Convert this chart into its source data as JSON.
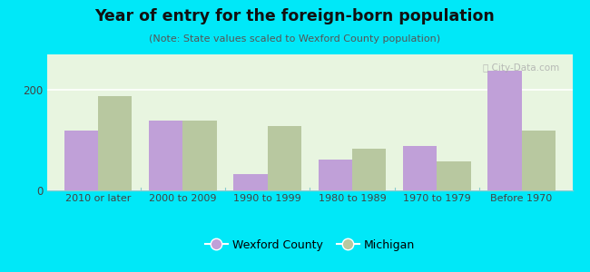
{
  "title": "Year of entry for the foreign-born population",
  "subtitle": "(Note: State values scaled to Wexford County population)",
  "categories": [
    "2010 or later",
    "2000 to 2009",
    "1990 to 1999",
    "1980 to 1989",
    "1970 to 1979",
    "Before 1970"
  ],
  "wexford": [
    118,
    138,
    33,
    62,
    88,
    238
  ],
  "michigan": [
    188,
    138,
    128,
    82,
    58,
    118
  ],
  "wexford_color": "#c0a0d8",
  "michigan_color": "#b8c8a0",
  "background_outer": "#00e8f8",
  "background_inner": "#e8f5e0",
  "ylim": [
    0,
    270
  ],
  "yticks": [
    0,
    200
  ],
  "bar_width": 0.4,
  "legend_wexford": "Wexford County",
  "legend_michigan": "Michigan"
}
